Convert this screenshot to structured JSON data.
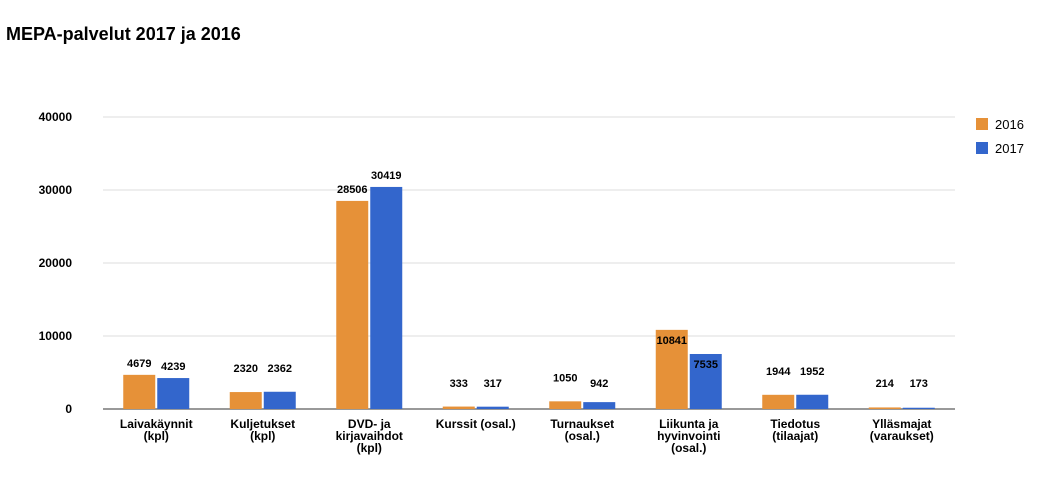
{
  "chart_data": {
    "type": "bar",
    "title": "MEPA-palvelut 2017 ja 2016",
    "xlabel": "",
    "ylabel": "",
    "ylim": [
      0,
      40000
    ],
    "yticks": [
      "0",
      "10000",
      "20000",
      "30000",
      "40000"
    ],
    "grid": true,
    "legend_position": "top-right",
    "categories": [
      [
        "Laivakäynnit",
        "(kpl)"
      ],
      [
        "Kuljetukset",
        "(kpl)"
      ],
      [
        "DVD- ja",
        "kirjavaihdot",
        "(kpl)"
      ],
      [
        "Kurssit (osal.)"
      ],
      [
        "Turnaukset",
        "(osal.)"
      ],
      [
        "Liikunta ja",
        "hyvinvointi",
        "(osal.)"
      ],
      [
        "Tiedotus",
        "(tilaajat)"
      ],
      [
        "Ylläsmajat",
        "(varaukset)"
      ]
    ],
    "series": [
      {
        "name": "2016",
        "color": "#E69138",
        "values": [
          4679,
          2320,
          28506,
          333,
          1050,
          10841,
          1944,
          214
        ]
      },
      {
        "name": "2017",
        "color": "#3366CC",
        "values": [
          4239,
          2362,
          30419,
          317,
          942,
          7535,
          1952,
          173
        ]
      }
    ]
  }
}
